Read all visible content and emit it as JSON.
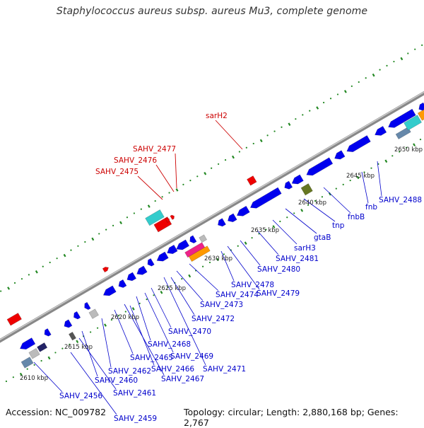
{
  "header": {
    "title": "Staphylococcus aureus subsp. aureus Mu3, complete genome"
  },
  "footer": {
    "accession": "Accession: NC_009782",
    "topology": "Topology: circular; Length: 2,880,168 bp; Genes: 2,767"
  },
  "colors": {
    "backbone": "#999999",
    "label_blue": "#0000cc",
    "label_red": "#cc0000",
    "tick_green": "#228822",
    "gene_blue": "#0000ee",
    "gene_cyan": "#33cccc",
    "gene_red": "#ee0000",
    "gene_orange": "#ff9900",
    "gene_magenta": "#ee2288",
    "gene_gray": "#bbbbbb",
    "gene_olive": "#667722",
    "gene_steel": "#6688aa"
  },
  "kbp_markers": [
    {
      "label": "2610 kbp"
    },
    {
      "label": "2615 kbp"
    },
    {
      "label": "2620 kbp"
    },
    {
      "label": "2625 kbp"
    },
    {
      "label": "2630 kbp"
    },
    {
      "label": "2635 kbp"
    },
    {
      "label": "2640 kbp"
    },
    {
      "label": "2645 kbp"
    },
    {
      "label": "2650 kbp"
    }
  ],
  "gene_labels_forward": [
    {
      "label": "sarH2"
    },
    {
      "label": "SAHV_2477"
    },
    {
      "label": "SAHV_2476"
    },
    {
      "label": "SAHV_2475"
    }
  ],
  "gene_labels_reverse": [
    {
      "label": "SAHV_2488"
    },
    {
      "label": "fnb"
    },
    {
      "label": "fnbB"
    },
    {
      "label": "tnp"
    },
    {
      "label": "gtaB"
    },
    {
      "label": "sarH3"
    },
    {
      "label": "SAHV_2481"
    },
    {
      "label": "SAHV_2480"
    },
    {
      "label": "SAHV_2479"
    },
    {
      "label": "SAHV_2478"
    },
    {
      "label": "SAHV_2474"
    },
    {
      "label": "SAHV_2473"
    },
    {
      "label": "SAHV_2472"
    },
    {
      "label": "SAHV_2470"
    },
    {
      "label": "SAHV_2471"
    },
    {
      "label": "SAHV_2469"
    },
    {
      "label": "SAHV_2468"
    },
    {
      "label": "SAHV_2466"
    },
    {
      "label": "SAHV_2467"
    },
    {
      "label": "SAHV_2465"
    },
    {
      "label": "SAHV_2462"
    },
    {
      "label": "SAHV_2460"
    },
    {
      "label": "SAHV_2461"
    },
    {
      "label": "SAHV_2456"
    },
    {
      "label": "SAHV_2459"
    }
  ]
}
